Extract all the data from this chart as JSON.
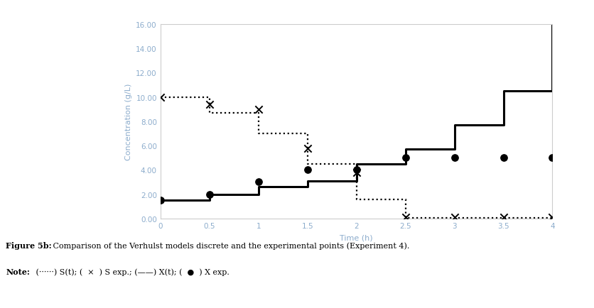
{
  "St_x": [
    0,
    0.5,
    0.5,
    1.0,
    1.0,
    1.5,
    1.5,
    2.0,
    2.0,
    2.5,
    2.5,
    4.0
  ],
  "St_y": [
    10.0,
    10.0,
    8.7,
    8.7,
    7.0,
    7.0,
    4.5,
    4.5,
    1.55,
    1.55,
    0.05,
    0.05
  ],
  "Xt_x": [
    0,
    0.5,
    0.5,
    1.0,
    1.0,
    1.5,
    1.5,
    2.0,
    2.0,
    2.5,
    2.5,
    3.0,
    3.0,
    3.5,
    3.5,
    4.0,
    4.0
  ],
  "Xt_y": [
    1.5,
    1.5,
    2.0,
    2.0,
    2.6,
    2.6,
    3.1,
    3.1,
    4.5,
    4.5,
    5.7,
    5.7,
    7.7,
    7.7,
    10.5,
    10.5,
    16.0
  ],
  "S_exp_x": [
    0,
    0.5,
    1.0,
    1.5,
    2.0,
    2.5,
    3.0,
    3.5,
    4.0
  ],
  "S_exp_y": [
    10.0,
    9.4,
    9.0,
    5.8,
    3.8,
    0.1,
    0.1,
    0.1,
    0.1
  ],
  "X_exp_x": [
    0,
    0.5,
    1.0,
    1.5,
    2.0,
    2.5,
    3.0,
    3.5,
    4.0
  ],
  "X_exp_y": [
    1.5,
    2.0,
    3.0,
    4.0,
    4.0,
    5.0,
    5.0,
    5.0,
    5.0
  ],
  "xlim": [
    0,
    4.0
  ],
  "ylim": [
    0.0,
    16.0
  ],
  "yticks": [
    0.0,
    2.0,
    4.0,
    6.0,
    8.0,
    10.0,
    12.0,
    14.0,
    16.0
  ],
  "xticks": [
    0,
    0.5,
    1.0,
    1.5,
    2.0,
    2.5,
    3.0,
    3.5,
    4.0
  ],
  "xlabel": "Time (h)",
  "ylabel": "Concentration (g/L)",
  "line_color": "#000000",
  "axis_label_color": "#8caccc",
  "tick_label_color": "#8caccc",
  "spine_color": "#cccccc",
  "caption_bold1": "Figure 5b:",
  "caption_normal1": " Comparison of the Verhulst models discrete and the experimental points (Experiment 4).",
  "caption_bold2": "Note:",
  "caption_normal2": " (······) S(t); (  ×  ) S exp.; (——) X(t); (  ●  ) X exp."
}
